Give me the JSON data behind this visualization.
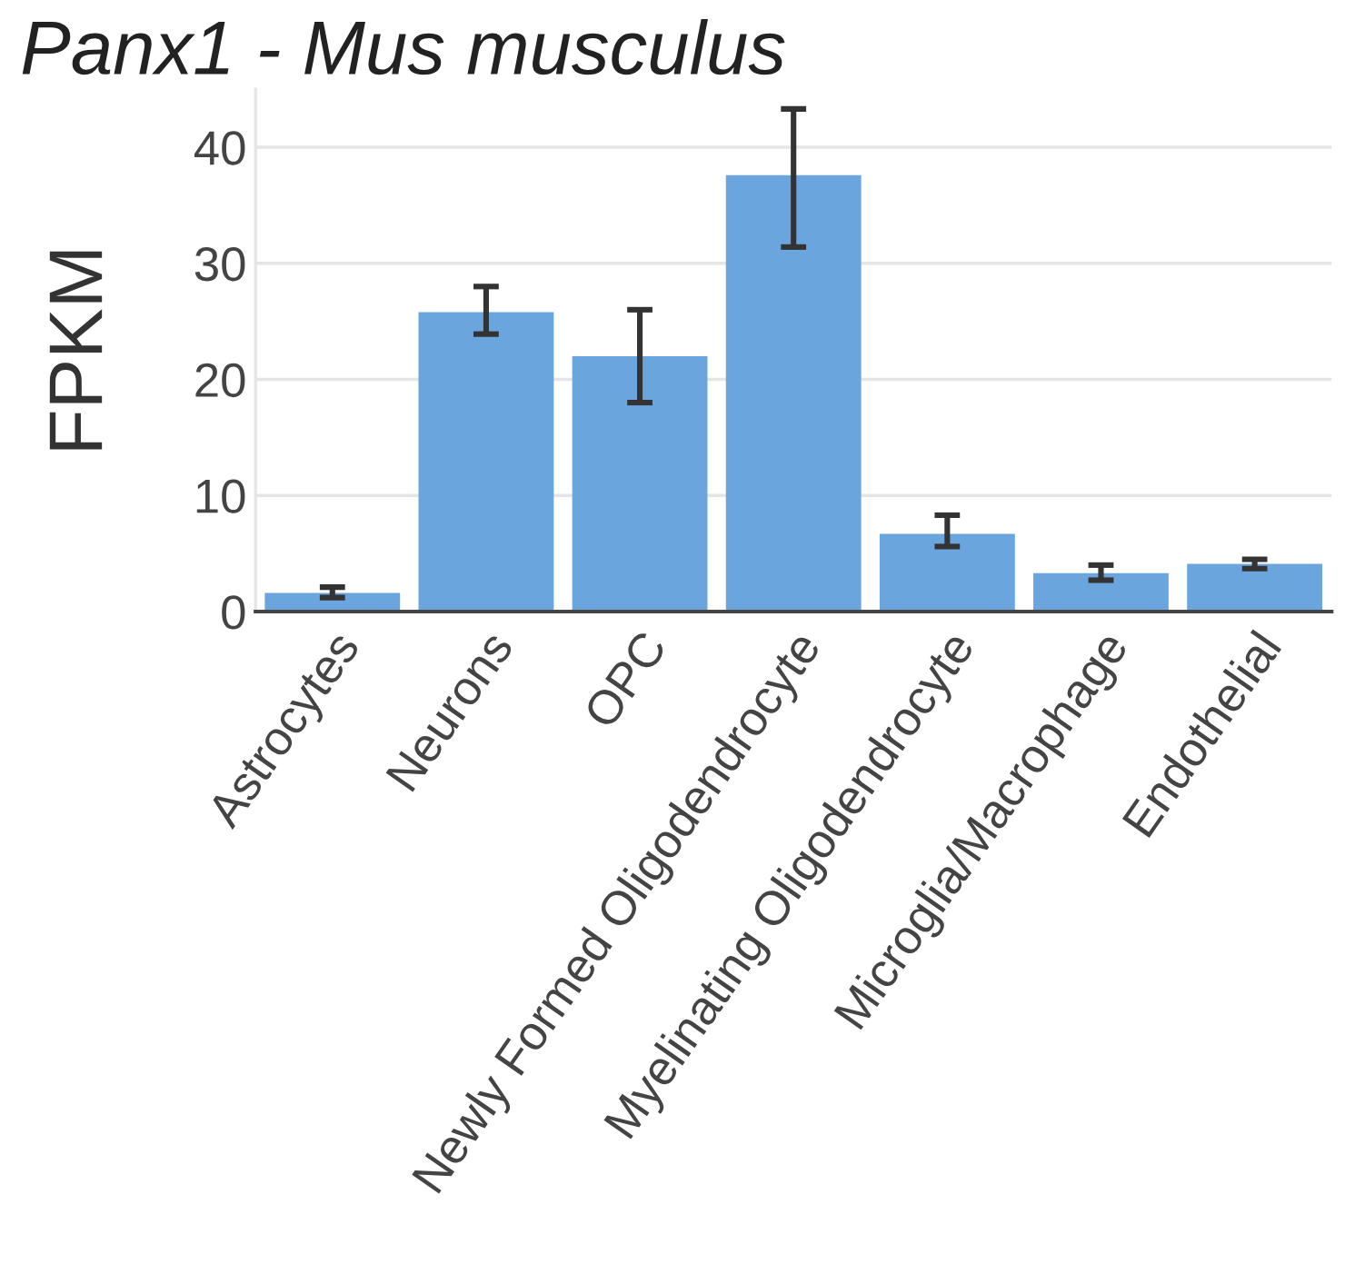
{
  "chart_data": {
    "type": "bar",
    "title": "Panx1 - Mus musculus",
    "ylabel": "FPKM",
    "categories": [
      "Astrocytes",
      "Neurons",
      "OPC",
      "Newly Formed Oligodendrocyte",
      "Myelinating Oligodendrocyte",
      "Microglia/Macrophage",
      "Endothelial"
    ],
    "values": [
      1.6,
      25.8,
      22.0,
      37.6,
      6.7,
      3.3,
      4.1
    ],
    "errors": [
      [
        1.2,
        2.1
      ],
      [
        23.9,
        28.0
      ],
      [
        18.0,
        26.0
      ],
      [
        31.4,
        43.3
      ],
      [
        5.6,
        8.3
      ],
      [
        2.7,
        4.0
      ],
      [
        3.7,
        4.5
      ]
    ],
    "color": "#6aa6dd",
    "ylim": [
      0,
      45
    ],
    "yticks": [
      0,
      10,
      20,
      30,
      40
    ],
    "grid": "y"
  }
}
